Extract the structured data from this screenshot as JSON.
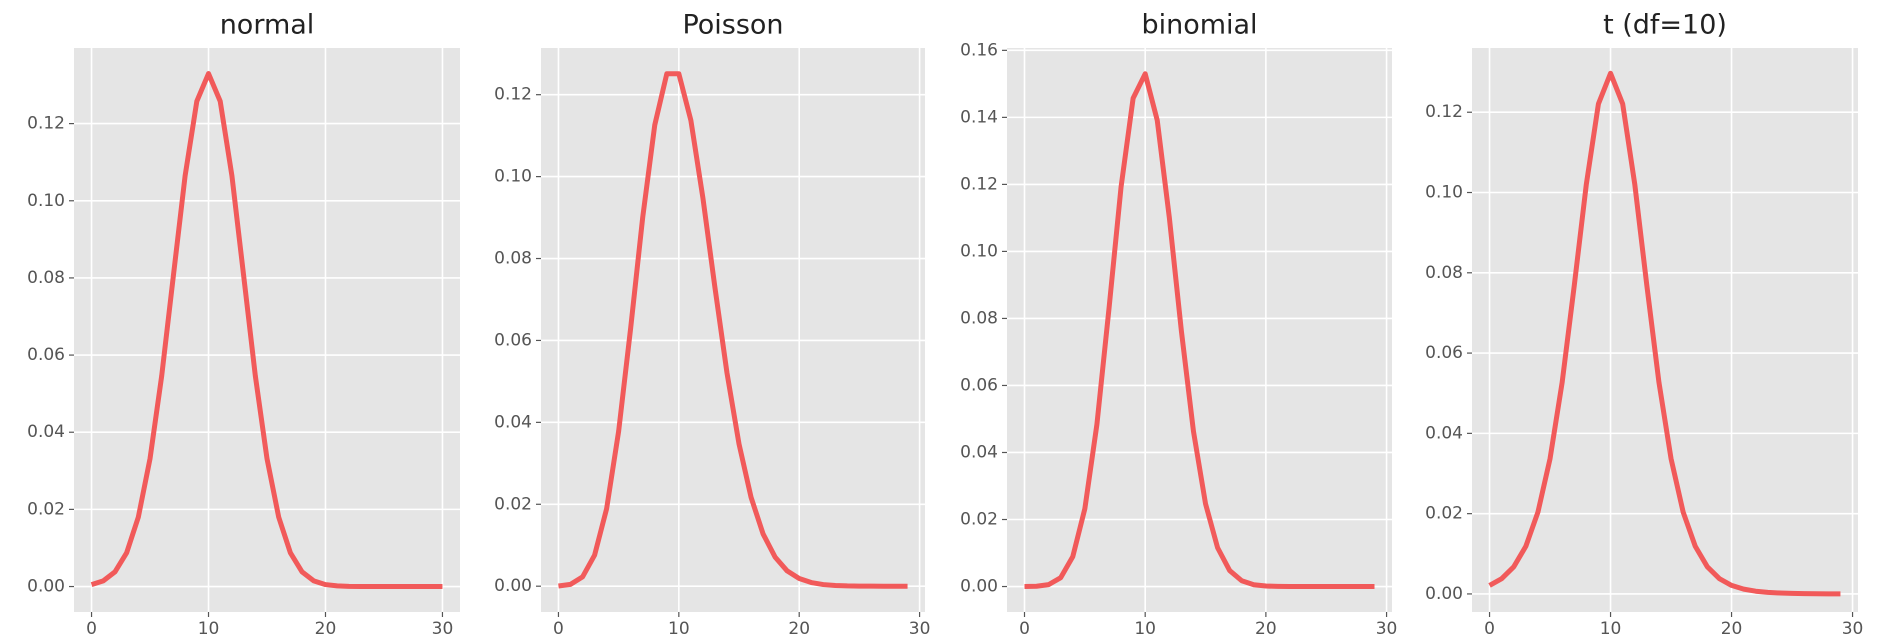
{
  "chart_data": [
    {
      "type": "line",
      "title": "normal",
      "color": "#F15A5A",
      "grid": true,
      "x": [
        0,
        1,
        2,
        3,
        4,
        5,
        6,
        7,
        8,
        9,
        10,
        11,
        12,
        13,
        14,
        15,
        16,
        17,
        18,
        19,
        20,
        21,
        22,
        23,
        24,
        25,
        26,
        27,
        28,
        29,
        30
      ],
      "values": [
        0.00051,
        0.00148,
        0.0038,
        0.00874,
        0.018,
        0.03316,
        0.05467,
        0.08066,
        0.10648,
        0.12579,
        0.13298,
        0.12579,
        0.10648,
        0.08066,
        0.05467,
        0.03316,
        0.018,
        0.00874,
        0.0038,
        0.00148,
        0.00051,
        0.00016,
        4e-05,
        1e-05,
        0,
        0,
        0,
        0,
        0,
        0,
        0
      ],
      "xlim": [
        -1.5,
        31.5
      ],
      "xticks": [
        0,
        10,
        20,
        30
      ],
      "ylim": [
        -0.0066,
        0.1396
      ],
      "yticks": [
        {
          "value": 0,
          "label": "0.00"
        },
        {
          "value": 0.02,
          "label": "0.02"
        },
        {
          "value": 0.04,
          "label": "0.04"
        },
        {
          "value": 0.06,
          "label": "0.06"
        },
        {
          "value": 0.08,
          "label": "0.08"
        },
        {
          "value": 0.1,
          "label": "0.10"
        },
        {
          "value": 0.12,
          "label": "0.12"
        }
      ]
    },
    {
      "type": "line",
      "title": "Poisson",
      "color": "#F15A5A",
      "grid": true,
      "x": [
        0,
        1,
        2,
        3,
        4,
        5,
        6,
        7,
        8,
        9,
        10,
        11,
        12,
        13,
        14,
        15,
        16,
        17,
        18,
        19,
        20,
        21,
        22,
        23,
        24,
        25,
        26,
        27,
        28,
        29
      ],
      "values": [
        5e-05,
        0.00045,
        0.00227,
        0.00757,
        0.01892,
        0.03783,
        0.06306,
        0.09008,
        0.1126,
        0.12511,
        0.12511,
        0.11374,
        0.09478,
        0.07291,
        0.05208,
        0.03472,
        0.0217,
        0.01276,
        0.00709,
        0.00373,
        0.00187,
        0.00089,
        0.0004,
        0.00018,
        7e-05,
        3e-05,
        1e-05,
        0,
        0,
        0
      ],
      "xlim": [
        -1.45,
        30.45
      ],
      "xticks": [
        0,
        10,
        20,
        30
      ],
      "ylim": [
        -0.0063,
        0.1314
      ],
      "yticks": [
        {
          "value": 0,
          "label": "0.00"
        },
        {
          "value": 0.02,
          "label": "0.02"
        },
        {
          "value": 0.04,
          "label": "0.04"
        },
        {
          "value": 0.06,
          "label": "0.06"
        },
        {
          "value": 0.08,
          "label": "0.08"
        },
        {
          "value": 0.1,
          "label": "0.10"
        },
        {
          "value": 0.12,
          "label": "0.12"
        }
      ]
    },
    {
      "type": "line",
      "title": "binomial",
      "color": "#F15A5A",
      "grid": true,
      "x": [
        0,
        1,
        2,
        3,
        4,
        5,
        6,
        7,
        8,
        9,
        10,
        11,
        12,
        13,
        14,
        15,
        16,
        17,
        18,
        19,
        20,
        21,
        22,
        23,
        24,
        25,
        26,
        27,
        28,
        29
      ],
      "values": [
        1e-05,
        8e-05,
        0.00057,
        0.00265,
        0.00893,
        0.0232,
        0.0484,
        0.0829,
        0.1192,
        0.1457,
        0.153,
        0.1391,
        0.1101,
        0.0762,
        0.0463,
        0.0247,
        0.01157,
        0.00476,
        0.00172,
        0.00054,
        0.00015,
        4e-05,
        0,
        0,
        0,
        0,
        0,
        0,
        0,
        0
      ],
      "xlim": [
        -1.45,
        30.45
      ],
      "xticks": [
        0,
        10,
        20,
        30
      ],
      "ylim": [
        -0.0076,
        0.1607
      ],
      "yticks": [
        {
          "value": 0,
          "label": "0.00"
        },
        {
          "value": 0.02,
          "label": "0.02"
        },
        {
          "value": 0.04,
          "label": "0.04"
        },
        {
          "value": 0.06,
          "label": "0.06"
        },
        {
          "value": 0.08,
          "label": "0.08"
        },
        {
          "value": 0.1,
          "label": "0.10"
        },
        {
          "value": 0.12,
          "label": "0.12"
        },
        {
          "value": 0.14,
          "label": "0.14"
        },
        {
          "value": 0.16,
          "label": "0.16"
        }
      ]
    },
    {
      "type": "line",
      "title": "t (df=10)",
      "color": "#F15A5A",
      "grid": true,
      "x": [
        0,
        1,
        2,
        3,
        4,
        5,
        6,
        7,
        8,
        9,
        10,
        11,
        12,
        13,
        14,
        15,
        16,
        17,
        18,
        19,
        20,
        21,
        22,
        23,
        24,
        25,
        26,
        27,
        28,
        29
      ],
      "values": [
        0.00213,
        0.0038,
        0.00676,
        0.01188,
        0.0204,
        0.0337,
        0.0527,
        0.0768,
        0.1021,
        0.1221,
        0.1297,
        0.1221,
        0.1021,
        0.0768,
        0.0527,
        0.0337,
        0.0204,
        0.01188,
        0.00676,
        0.0038,
        0.00213,
        0.0012,
        0.00068,
        0.00039,
        0.00023,
        0.00013,
        8e-05,
        5e-05,
        3e-05,
        2e-05
      ],
      "xlim": [
        -1.45,
        30.45
      ],
      "xticks": [
        0,
        10,
        20,
        30
      ],
      "ylim": [
        -0.0045,
        0.136
      ],
      "yticks": [
        {
          "value": 0,
          "label": "0.00"
        },
        {
          "value": 0.02,
          "label": "0.02"
        },
        {
          "value": 0.04,
          "label": "0.04"
        },
        {
          "value": 0.06,
          "label": "0.06"
        },
        {
          "value": 0.08,
          "label": "0.08"
        },
        {
          "value": 0.1,
          "label": "0.10"
        },
        {
          "value": 0.12,
          "label": "0.12"
        }
      ]
    }
  ]
}
